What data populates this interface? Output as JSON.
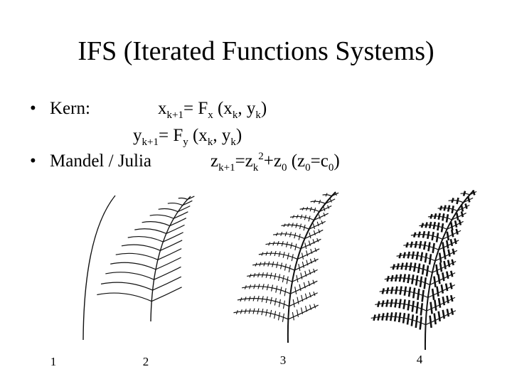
{
  "title": "IFS (Iterated Functions Systems)",
  "bullets": [
    {
      "label": "Kern:",
      "formula_lines": [
        [
          {
            "text": "x",
            "pos": "base"
          },
          {
            "text": "k+1",
            "pos": "sub"
          },
          {
            "text": "= F",
            "pos": "base"
          },
          {
            "text": "x",
            "pos": "sub"
          },
          {
            "text": " (x",
            "pos": "base"
          },
          {
            "text": "k",
            "pos": "sub"
          },
          {
            "text": ", y",
            "pos": "base"
          },
          {
            "text": "k",
            "pos": "sub"
          },
          {
            "text": ")",
            "pos": "base"
          }
        ],
        [
          {
            "text": "y",
            "pos": "base"
          },
          {
            "text": "k+1",
            "pos": "sub"
          },
          {
            "text": "= F",
            "pos": "base"
          },
          {
            "text": "y",
            "pos": "sub"
          },
          {
            "text": " (x",
            "pos": "base"
          },
          {
            "text": "k",
            "pos": "sub"
          },
          {
            "text": ", y",
            "pos": "base"
          },
          {
            "text": "k",
            "pos": "sub"
          },
          {
            "text": ")",
            "pos": "base"
          }
        ]
      ]
    },
    {
      "label": "Mandel / Julia",
      "formula_lines": [
        [
          {
            "text": "z",
            "pos": "base"
          },
          {
            "text": "k+1",
            "pos": "sub"
          },
          {
            "text": "=z",
            "pos": "base"
          },
          {
            "text": "k",
            "pos": "sub"
          },
          {
            "text": "2",
            "pos": "sup"
          },
          {
            "text": "+z",
            "pos": "base"
          },
          {
            "text": "0",
            "pos": "sub"
          },
          {
            "text": " (z",
            "pos": "base"
          },
          {
            "text": "0",
            "pos": "sub"
          },
          {
            "text": "=c",
            "pos": "base"
          },
          {
            "text": "0",
            "pos": "sub"
          },
          {
            "text": ")",
            "pos": "base"
          }
        ]
      ]
    }
  ],
  "figure_labels": [
    "1",
    "2",
    "3",
    "4"
  ]
}
